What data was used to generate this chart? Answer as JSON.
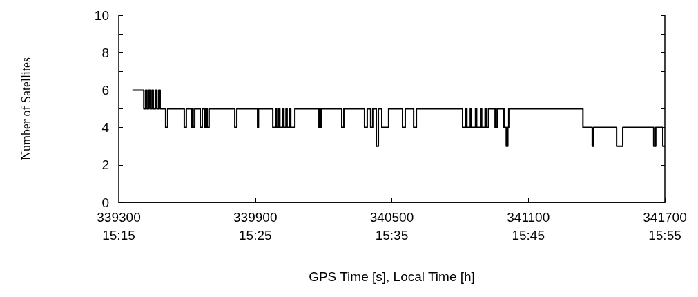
{
  "chart_data": {
    "type": "step",
    "xlabel": "GPS Time [s], Local Time [h]",
    "ylabel": "Number of Satellites",
    "xlim": [
      339300,
      341700
    ],
    "xticks": [
      339300,
      339900,
      340500,
      341100,
      341700
    ],
    "x2lim": [
      15.25,
      15.9167
    ],
    "x2ticks": [
      {
        "value": 15.25,
        "label": "15:15"
      },
      {
        "value": 15.4167,
        "label": "15:25"
      },
      {
        "value": 15.5833,
        "label": "15:35"
      },
      {
        "value": 15.75,
        "label": "15:45"
      },
      {
        "value": 15.9167,
        "label": "15:55"
      }
    ],
    "ylim": [
      0,
      10
    ],
    "yticks": [
      0,
      {
        "value": 1,
        "label": null
      },
      2,
      {
        "value": 3,
        "label": null
      },
      4,
      {
        "value": 5,
        "label": null
      },
      6,
      {
        "value": 7,
        "label": null
      },
      8,
      {
        "value": 9,
        "label": null
      },
      10
    ],
    "grid": false,
    "marker": "none",
    "line_style": "solid",
    "series": [
      {
        "color": "#000000",
        "x": [
          339360,
          339410,
          339418,
          339424,
          339432,
          339438,
          339446,
          339452,
          339462,
          339468,
          339476,
          339482,
          339506,
          339515,
          339588,
          339597,
          339619,
          339623,
          339627,
          339634,
          339658,
          339667,
          339679,
          339684,
          339689,
          339697,
          339810,
          339819,
          339910,
          339914,
          339977,
          339990,
          339994,
          340003,
          340008,
          340020,
          340026,
          340035,
          340040,
          340050,
          340056,
          340074,
          340180,
          340189,
          340280,
          340289,
          340380,
          340392,
          340407,
          340416,
          340432,
          340441,
          340456,
          340486,
          340547,
          340559,
          340596,
          340608,
          340811,
          340825,
          340830,
          340845,
          340850,
          340868,
          340873,
          340890,
          340895,
          340910,
          340915,
          340925,
          340954,
          340963,
          340993,
          341003,
          341010,
          341014,
          341340,
          341381,
          341387,
          341488,
          341515,
          341651,
          341660,
          341691,
          341700
        ],
        "values": [
          6,
          5,
          6,
          5,
          6,
          5,
          6,
          5,
          6,
          5,
          6,
          5,
          4,
          5,
          4,
          5,
          4,
          5,
          4,
          5,
          4,
          5,
          4,
          5,
          4,
          5,
          4,
          5,
          4,
          5,
          4,
          5,
          4,
          5,
          4,
          5,
          4,
          5,
          4,
          5,
          4,
          5,
          4,
          5,
          4,
          5,
          4,
          5,
          4,
          5,
          3,
          5,
          4,
          5,
          4,
          5,
          4,
          5,
          4,
          5,
          4,
          5,
          4,
          5,
          4,
          5,
          4,
          5,
          4,
          5,
          4,
          5,
          4,
          3,
          4,
          5,
          4,
          3,
          4,
          3,
          4,
          3,
          4,
          3,
          3
        ]
      }
    ]
  }
}
